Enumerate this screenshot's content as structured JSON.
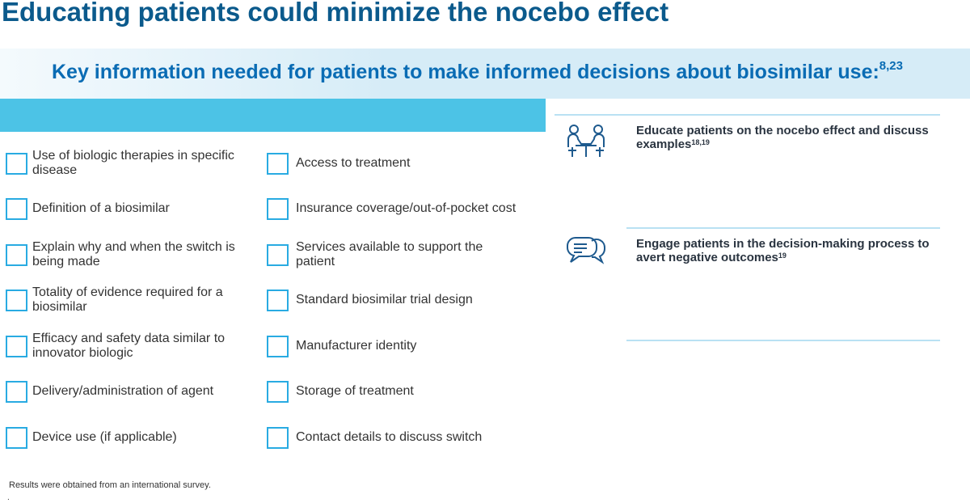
{
  "title": "Educating patients could minimize the nocebo effect",
  "banner": {
    "heading": "Key information needed for patients to make informed decisions about biosimilar use:",
    "heading_ref": "8,23"
  },
  "checklist": {
    "left": [
      "Use of biologic therapies in specific disease",
      "Definition of a biosimilar",
      "Explain why and when the switch is being made",
      "Totality of evidence required for a biosimilar",
      "Efficacy and safety data similar to innovator biologic",
      "Delivery/administration of agent",
      "Device use (if applicable)"
    ],
    "right": [
      "Access to treatment",
      "Insurance coverage/out-of-pocket cost",
      "Services available to support the patient",
      "Standard biosimilar trial design",
      "Manufacturer identity",
      "Storage of treatment",
      "Contact details to discuss switch"
    ]
  },
  "actions": [
    {
      "text": "Educate patients on the nocebo effect and discuss examples",
      "ref": "18,19"
    },
    {
      "text": "Engage patients in the decision-making process to avert negative outcomes",
      "ref": "19"
    }
  ],
  "footnote": "Results were obtained from an international survey.",
  "footer_mark": "."
}
